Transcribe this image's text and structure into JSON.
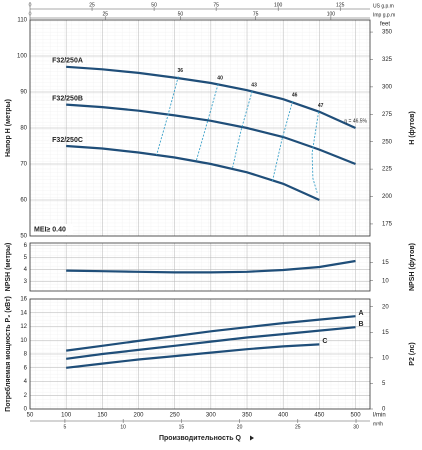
{
  "chart_data": [
    {
      "type": "line",
      "y_label": "Напор H (метры)",
      "y2_label": "H (футов)",
      "y2_unit": "feet",
      "top_axes": [
        {
          "label": "US g.p.m",
          "xlim": [
            0,
            137
          ],
          "xticks": [
            0,
            25,
            50,
            75,
            100,
            125
          ]
        },
        {
          "label": "Imp g.p.m",
          "xlim": [
            0,
            113
          ],
          "xticks": [
            0,
            25,
            50,
            75,
            100
          ]
        }
      ],
      "xlim": [
        50,
        520
      ],
      "ylim": [
        50,
        110
      ],
      "yticks": [
        50,
        60,
        70,
        80,
        90,
        100,
        110
      ],
      "y2lim": [
        164,
        361
      ],
      "y2ticks": [
        175,
        200,
        225,
        250,
        275,
        300,
        325,
        350
      ],
      "x": [
        100,
        150,
        200,
        250,
        300,
        350,
        400,
        450,
        500
      ],
      "label_at": "start",
      "series": [
        {
          "name": "F32/250A",
          "color": "#1f4e79",
          "values": [
            97,
            96.3,
            95.3,
            94,
            92.5,
            90.5,
            88,
            84.5,
            80
          ]
        },
        {
          "name": "F32/250B",
          "color": "#1f4e79",
          "values": [
            86.5,
            85.8,
            84.8,
            83.5,
            82,
            80,
            77.5,
            74,
            70
          ]
        },
        {
          "name": "F32/250C",
          "color": "#1f4e79",
          "values": [
            75,
            74.3,
            73.2,
            71.8,
            70,
            67.7,
            64.5,
            60,
            null
          ]
        }
      ],
      "efficiency_color": "#3aa0c8",
      "efficiency_lines": [
        {
          "label": "36",
          "x": [
            255,
            240,
            225
          ],
          "y": [
            94.3,
            83,
            72.5
          ]
        },
        {
          "label": "40",
          "x": [
            310,
            295,
            280
          ],
          "y": [
            92.2,
            81.5,
            71
          ]
        },
        {
          "label": "43",
          "x": [
            357,
            342,
            330
          ],
          "y": [
            90.2,
            79.5,
            69
          ]
        },
        {
          "label": "46",
          "x": [
            413,
            398,
            385
          ],
          "y": [
            87.5,
            76.5,
            65
          ]
        },
        {
          "label": "47",
          "x": [
            449,
            440,
            441,
            447
          ],
          "y": [
            84.5,
            73,
            66,
            62
          ]
        }
      ],
      "efficiency_note": "η = 46.5%",
      "annotation": "MEI≥ 0.40"
    },
    {
      "type": "line",
      "y_label": "NPSH (метры)",
      "y2_label": "NPSH (футов)",
      "xlim": [
        50,
        520
      ],
      "ylim": [
        2.2,
        6.2
      ],
      "yticks": [
        3,
        4,
        5,
        6
      ],
      "y2lim": [
        7.2,
        20.3
      ],
      "y2ticks": [
        10,
        15
      ],
      "x": [
        100,
        150,
        200,
        250,
        300,
        350,
        400,
        450,
        500
      ],
      "series": [
        {
          "color": "#1f4e79",
          "values": [
            3.9,
            3.85,
            3.8,
            3.75,
            3.75,
            3.8,
            3.95,
            4.2,
            4.7
          ]
        }
      ]
    },
    {
      "type": "line",
      "y_label": "Потребляемая мощность P₂ (кВт)",
      "y2_label": "P2 (лс)",
      "xlim": [
        50,
        520
      ],
      "xticks": [
        50,
        100,
        150,
        200,
        250,
        300,
        350,
        400,
        450,
        500
      ],
      "x_unit": "l/min",
      "ylim": [
        0,
        16
      ],
      "yticks": [
        0,
        2,
        4,
        6,
        8,
        10,
        12,
        14,
        16
      ],
      "y2lim": [
        0,
        21.5
      ],
      "y2ticks": [
        0,
        5,
        10,
        15,
        20
      ],
      "bottom_axis": {
        "label": "m³/h",
        "xlim": [
          2,
          31.2
        ],
        "xticks": [
          5,
          10,
          15,
          20,
          25,
          30
        ]
      },
      "x_label": "Производительность Q",
      "x": [
        100,
        150,
        200,
        250,
        300,
        350,
        400,
        450,
        500
      ],
      "label_at": "end",
      "series": [
        {
          "name": "A",
          "color": "#1f4e79",
          "values": [
            8.5,
            9.2,
            9.9,
            10.6,
            11.3,
            11.9,
            12.5,
            13,
            13.5
          ]
        },
        {
          "name": "B",
          "color": "#1f4e79",
          "values": [
            7.3,
            8,
            8.6,
            9.2,
            9.8,
            10.4,
            10.9,
            11.4,
            11.9
          ]
        },
        {
          "name": "C",
          "color": "#1f4e79",
          "values": [
            6,
            6.6,
            7.2,
            7.7,
            8.2,
            8.7,
            9.1,
            9.4,
            null
          ]
        }
      ]
    }
  ]
}
